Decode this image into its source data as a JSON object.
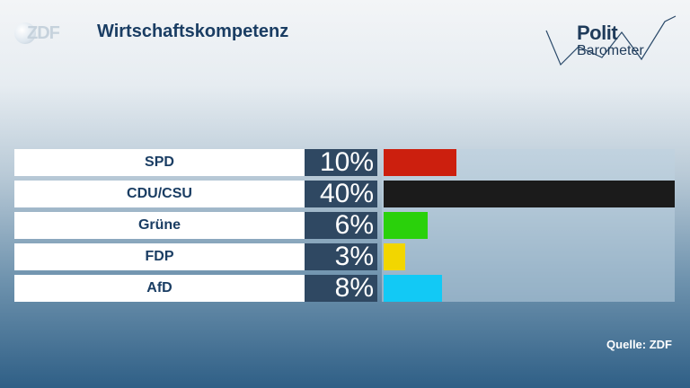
{
  "header": {
    "logo_text": "ZDF",
    "title": "Wirtschaftskompetenz",
    "brand_line1": "Polit",
    "brand_line2": "Barometer"
  },
  "chart_data": {
    "type": "bar",
    "orientation": "horizontal",
    "title": "Wirtschaftskompetenz",
    "categories": [
      "SPD",
      "CDU/CSU",
      "Grüne",
      "FDP",
      "AfD"
    ],
    "values": [
      10,
      40,
      6,
      3,
      8
    ],
    "value_labels": [
      "10%",
      "40%",
      "6%",
      "3%",
      "8%"
    ],
    "unit": "%",
    "colors": [
      "#cc1f0e",
      "#1b1b1b",
      "#2ad10b",
      "#f2d600",
      "#12c9f5"
    ],
    "xlim": [
      0,
      40
    ],
    "grid": false,
    "legend": "none"
  },
  "footer": {
    "source": "Quelle: ZDF"
  }
}
